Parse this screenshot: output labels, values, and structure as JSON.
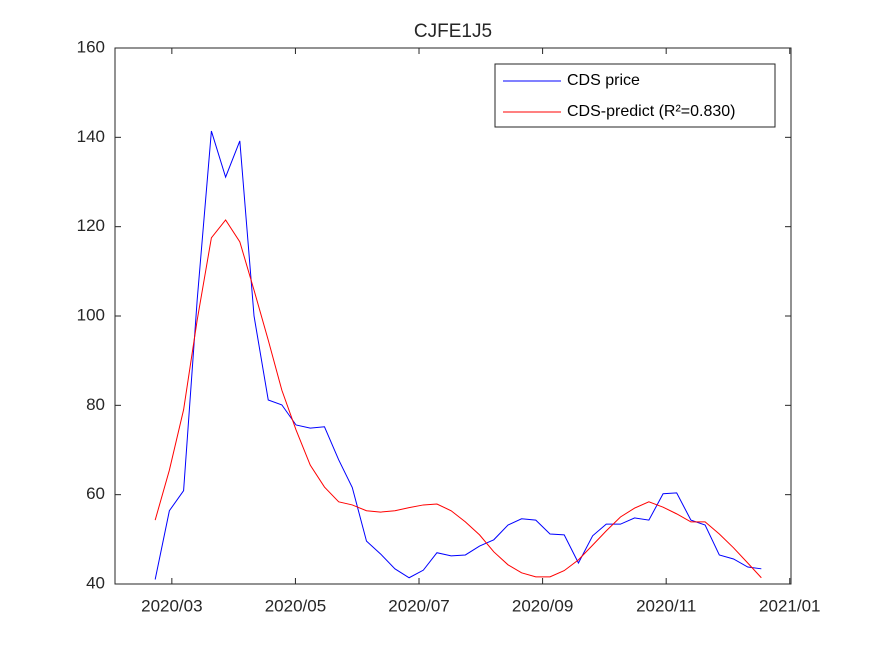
{
  "chart_data": {
    "type": "line",
    "title": "CJFE1J5",
    "x": [
      2.73,
      2.96,
      3.19,
      3.41,
      3.64,
      3.87,
      4.1,
      4.33,
      4.56,
      4.78,
      5.01,
      5.24,
      5.47,
      5.7,
      5.92,
      6.15,
      6.38,
      6.61,
      6.84,
      7.07,
      7.29,
      7.52,
      7.75,
      7.98,
      8.21,
      8.44,
      8.66,
      8.89,
      9.12,
      9.35,
      9.58,
      9.81,
      10.03,
      10.26,
      10.49,
      10.72,
      10.95,
      11.17,
      11.4,
      11.63,
      11.86,
      12.09,
      12.32,
      12.54
    ],
    "series": [
      {
        "name": "CDS price",
        "color": "#0000ff",
        "values": [
          41,
          56.4,
          60.9,
          103.6,
          141.4,
          131.1,
          139.2,
          100.0,
          81.2,
          80.1,
          75.6,
          74.9,
          75.2,
          67.8,
          61.6,
          49.6,
          46.7,
          43.4,
          41.4,
          43.1,
          47.0,
          46.3,
          46.5,
          48.5,
          49.9,
          53.2,
          54.6,
          54.3,
          51.2,
          51.0,
          44.7,
          50.8,
          53.4,
          53.4,
          54.8,
          54.3,
          60.2,
          60.4,
          54.3,
          53.2,
          46.5,
          45.6,
          43.8,
          43.4
        ]
      },
      {
        "name": "CDS-predict (R²=0.830)",
        "color": "#ff0000",
        "values": [
          54.3,
          65.5,
          79,
          99.1,
          117.5,
          121.5,
          116.6,
          105.8,
          94.6,
          83.4,
          74.5,
          66.6,
          61.7,
          58.4,
          57.7,
          56.4,
          56.1,
          56.4,
          57.1,
          57.7,
          57.9,
          56.4,
          53.9,
          51.0,
          47.2,
          44.3,
          42.5,
          41.6,
          41.6,
          43.0,
          45.4,
          48.7,
          51.9,
          55.0,
          57.0,
          58.4,
          57.2,
          55.7,
          53.9,
          53.9,
          51.2,
          48.1,
          44.7,
          41.4
        ]
      }
    ],
    "xlim": [
      2.08,
      13.02
    ],
    "xticks": [
      {
        "value": 3,
        "label": "2020/03"
      },
      {
        "value": 5,
        "label": "2020/05"
      },
      {
        "value": 7,
        "label": "2020/07"
      },
      {
        "value": 9,
        "label": "2020/09"
      },
      {
        "value": 11,
        "label": "2020/11"
      },
      {
        "value": 13,
        "label": "2021/01"
      }
    ],
    "ylim": [
      40,
      160
    ],
    "yticks": [
      40,
      60,
      80,
      100,
      120,
      140,
      160
    ],
    "grid": false,
    "legend": "northeast"
  }
}
